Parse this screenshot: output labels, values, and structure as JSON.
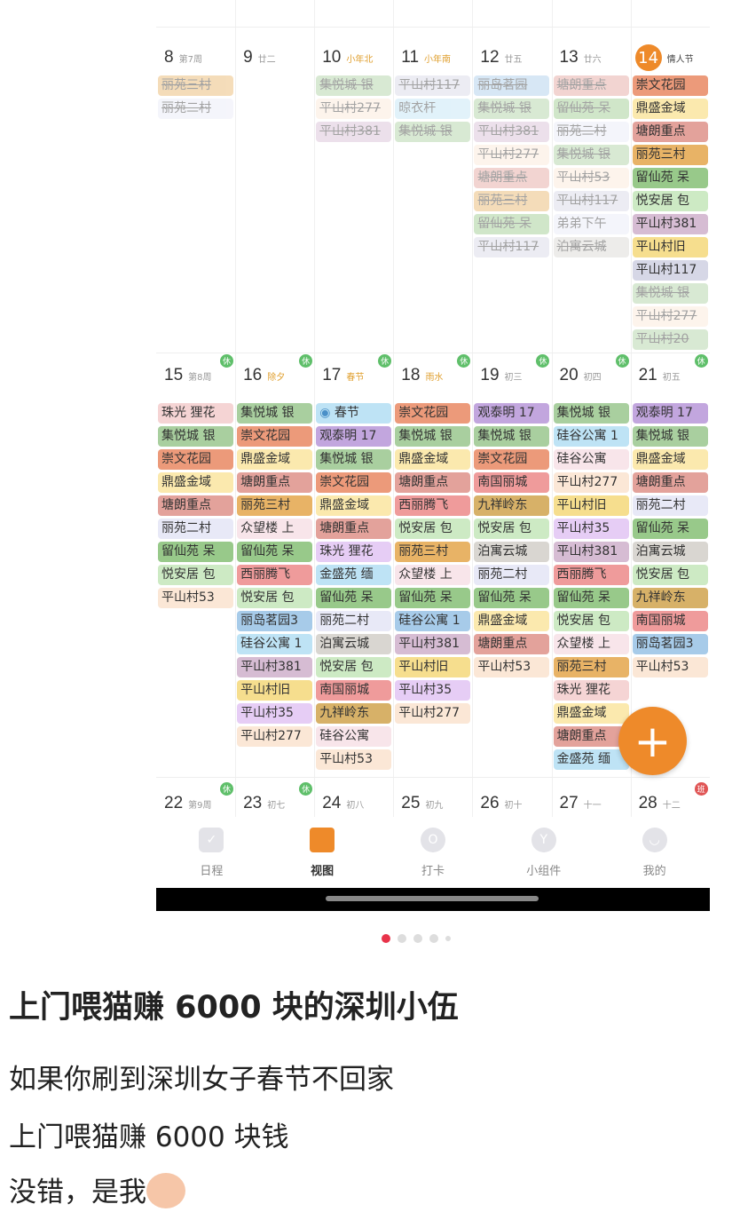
{
  "palette": {
    "orange": "#e8b366",
    "peach": "#f6dfb6",
    "coral": "#ec9a7a",
    "yellow": "#fbe9ae",
    "rose": "#e3a29b",
    "green": "#98c98a",
    "sage": "#a9cf9f",
    "lgreen": "#cdeac4",
    "mauve": "#d6bcd3",
    "gold": "#f6de8e",
    "slate": "#d6d7e6",
    "lav": "#e8e9f7",
    "purple": "#c2a6de",
    "pink": "#f5d4d4",
    "blue": "#a7cbe9",
    "sky": "#bee3f5",
    "red": "#ef9b9b",
    "brown": "#d7b168",
    "gray": "#d9d6d1",
    "lpink": "#f8e5ea",
    "cream": "#fbe7d6",
    "lilac": "#e6cdf5"
  },
  "accent": "#ee8a2a",
  "weeks": [
    {
      "days": [
        {
          "num": "8",
          "lunar": "第7周",
          "events": [
            {
              "t": "丽苑三村",
              "c": "orange",
              "s": "done"
            },
            {
              "t": "丽苑二村",
              "c": "lav",
              "s": "done"
            }
          ]
        },
        {
          "num": "9",
          "lunar": "廿二",
          "events": []
        },
        {
          "num": "10",
          "lunar": "小年北",
          "hol": true,
          "events": [
            {
              "t": "集悦城 银",
              "c": "sage",
              "s": "done"
            },
            {
              "t": "平山村277",
              "c": "cream",
              "s": "done"
            },
            {
              "t": "平山村381",
              "c": "mauve",
              "s": "done"
            }
          ]
        },
        {
          "num": "11",
          "lunar": "小年南",
          "hol": true,
          "events": [
            {
              "t": "平山村117",
              "c": "slate",
              "s": "done"
            },
            {
              "t": "晾衣杆",
              "c": "sky",
              "s": "faded"
            },
            {
              "t": "集悦城 银",
              "c": "sage",
              "s": "done"
            }
          ]
        },
        {
          "num": "12",
          "lunar": "廿五",
          "events": [
            {
              "t": "丽岛茗园",
              "c": "blue",
              "s": "done"
            },
            {
              "t": "集悦城 银",
              "c": "sage",
              "s": "done"
            },
            {
              "t": "平山村381",
              "c": "mauve",
              "s": "done"
            },
            {
              "t": "平山村277",
              "c": "cream",
              "s": "done"
            },
            {
              "t": "塘朗重点",
              "c": "rose",
              "s": "done"
            },
            {
              "t": "丽苑三村",
              "c": "orange",
              "s": "done"
            },
            {
              "t": "留仙苑 呆",
              "c": "green",
              "s": "done"
            },
            {
              "t": "平山村117",
              "c": "slate",
              "s": "done"
            }
          ]
        },
        {
          "num": "13",
          "lunar": "廿六",
          "events": [
            {
              "t": "塘朗重点",
              "c": "rose",
              "s": "done"
            },
            {
              "t": "留仙苑 呆",
              "c": "green",
              "s": "done"
            },
            {
              "t": "丽苑二村",
              "c": "lav",
              "s": "done"
            },
            {
              "t": "集悦城 银",
              "c": "sage",
              "s": "done"
            },
            {
              "t": "平山村53",
              "c": "cream",
              "s": "done"
            },
            {
              "t": "平山村117",
              "c": "slate",
              "s": "done"
            },
            {
              "t": "弟弟下午",
              "c": "lav",
              "s": "faded"
            },
            {
              "t": "泊寓云城",
              "c": "gray",
              "s": "done"
            }
          ]
        },
        {
          "num": "14",
          "lunar": "情人节",
          "today": true,
          "events": [
            {
              "t": "崇文花园",
              "c": "coral"
            },
            {
              "t": "鼎盛金域",
              "c": "yellow"
            },
            {
              "t": "塘朗重点",
              "c": "rose"
            },
            {
              "t": "丽苑三村",
              "c": "orange"
            },
            {
              "t": "留仙苑 呆",
              "c": "green"
            },
            {
              "t": "悦安居 包",
              "c": "lgreen"
            },
            {
              "t": "平山村381",
              "c": "mauve"
            },
            {
              "t": "平山村旧",
              "c": "gold"
            },
            {
              "t": "平山村117",
              "c": "slate"
            },
            {
              "t": "集悦城 银",
              "c": "sage",
              "s": "done"
            },
            {
              "t": "平山村277",
              "c": "cream",
              "s": "done"
            },
            {
              "t": "平山村20",
              "c": "sage",
              "s": "done"
            }
          ]
        }
      ]
    },
    {
      "days": [
        {
          "num": "15",
          "lunar": "第8周",
          "badge": "休",
          "events": [
            {
              "t": "珠光 狸花",
              "c": "pink"
            },
            {
              "t": "集悦城 银",
              "c": "sage"
            },
            {
              "t": "崇文花园",
              "c": "coral"
            },
            {
              "t": "鼎盛金域",
              "c": "yellow"
            },
            {
              "t": "塘朗重点",
              "c": "rose"
            },
            {
              "t": "丽苑二村",
              "c": "lav"
            },
            {
              "t": "留仙苑 呆",
              "c": "green"
            },
            {
              "t": "悦安居 包",
              "c": "lgreen"
            },
            {
              "t": "平山村53",
              "c": "cream"
            }
          ]
        },
        {
          "num": "16",
          "lunar": "除夕",
          "hol": true,
          "badge": "休",
          "events": [
            {
              "t": "集悦城 银",
              "c": "sage"
            },
            {
              "t": "崇文花园",
              "c": "coral"
            },
            {
              "t": "鼎盛金域",
              "c": "yellow"
            },
            {
              "t": "塘朗重点",
              "c": "rose"
            },
            {
              "t": "丽苑三村",
              "c": "orange"
            },
            {
              "t": "众望楼 上",
              "c": "lpink"
            },
            {
              "t": "留仙苑 呆",
              "c": "green"
            },
            {
              "t": "西丽腾飞",
              "c": "red"
            },
            {
              "t": "悦安居 包",
              "c": "lgreen"
            },
            {
              "t": "丽岛茗园3",
              "c": "blue"
            },
            {
              "t": "硅谷公寓 1",
              "c": "sky"
            },
            {
              "t": "平山村381",
              "c": "mauve"
            },
            {
              "t": "平山村旧",
              "c": "gold"
            },
            {
              "t": "平山村35",
              "c": "lilac"
            },
            {
              "t": "平山村277",
              "c": "cream"
            }
          ]
        },
        {
          "num": "17",
          "lunar": "春节",
          "hol": true,
          "badge": "休",
          "events": [
            {
              "t": "春节",
              "c": "sky",
              "icon": true
            },
            {
              "t": "观泰明 17",
              "c": "purple"
            },
            {
              "t": "集悦城 银",
              "c": "sage"
            },
            {
              "t": "崇文花园",
              "c": "coral"
            },
            {
              "t": "鼎盛金域",
              "c": "yellow"
            },
            {
              "t": "塘朗重点",
              "c": "rose"
            },
            {
              "t": "珠光 狸花",
              "c": "lilac"
            },
            {
              "t": "金盛苑 缅",
              "c": "sky"
            },
            {
              "t": "留仙苑 呆",
              "c": "green"
            },
            {
              "t": "丽苑二村",
              "c": "lav"
            },
            {
              "t": "泊寓云城",
              "c": "gray"
            },
            {
              "t": "悦安居 包",
              "c": "lgreen"
            },
            {
              "t": "南国丽城",
              "c": "red"
            },
            {
              "t": "九祥岭东",
              "c": "brown"
            },
            {
              "t": "硅谷公寓",
              "c": "lpink"
            },
            {
              "t": "平山村53",
              "c": "cream"
            }
          ]
        },
        {
          "num": "18",
          "lunar": "雨水",
          "hol": true,
          "badge": "休",
          "events": [
            {
              "t": "崇文花园",
              "c": "coral"
            },
            {
              "t": "集悦城 银",
              "c": "sage"
            },
            {
              "t": "鼎盛金域",
              "c": "yellow"
            },
            {
              "t": "塘朗重点",
              "c": "rose"
            },
            {
              "t": "西丽腾飞",
              "c": "red"
            },
            {
              "t": "悦安居 包",
              "c": "lgreen"
            },
            {
              "t": "丽苑三村",
              "c": "orange"
            },
            {
              "t": "众望楼 上",
              "c": "lpink"
            },
            {
              "t": "留仙苑 呆",
              "c": "green"
            },
            {
              "t": "硅谷公寓 1",
              "c": "blue"
            },
            {
              "t": "平山村381",
              "c": "mauve"
            },
            {
              "t": "平山村旧",
              "c": "gold"
            },
            {
              "t": "平山村35",
              "c": "lilac"
            },
            {
              "t": "平山村277",
              "c": "cream"
            }
          ]
        },
        {
          "num": "19",
          "lunar": "初三",
          "badge": "休",
          "events": [
            {
              "t": "观泰明 17",
              "c": "purple"
            },
            {
              "t": "集悦城 银",
              "c": "sage"
            },
            {
              "t": "崇文花园",
              "c": "coral"
            },
            {
              "t": "南国丽城",
              "c": "red"
            },
            {
              "t": "九祥岭东",
              "c": "brown"
            },
            {
              "t": "悦安居 包",
              "c": "lgreen"
            },
            {
              "t": "泊寓云城",
              "c": "gray"
            },
            {
              "t": "丽苑二村",
              "c": "lav"
            },
            {
              "t": "留仙苑 呆",
              "c": "green"
            },
            {
              "t": "鼎盛金域",
              "c": "yellow"
            },
            {
              "t": "塘朗重点",
              "c": "rose"
            },
            {
              "t": "平山村53",
              "c": "cream"
            }
          ]
        },
        {
          "num": "20",
          "lunar": "初四",
          "badge": "休",
          "events": [
            {
              "t": "集悦城 银",
              "c": "sage"
            },
            {
              "t": "硅谷公寓 1",
              "c": "sky"
            },
            {
              "t": "硅谷公寓",
              "c": "lpink"
            },
            {
              "t": "平山村277",
              "c": "cream"
            },
            {
              "t": "平山村旧",
              "c": "gold"
            },
            {
              "t": "平山村35",
              "c": "lilac"
            },
            {
              "t": "平山村381",
              "c": "mauve"
            },
            {
              "t": "西丽腾飞",
              "c": "red"
            },
            {
              "t": "留仙苑 呆",
              "c": "green"
            },
            {
              "t": "悦安居 包",
              "c": "lgreen"
            },
            {
              "t": "众望楼 上",
              "c": "lpink"
            },
            {
              "t": "丽苑三村",
              "c": "orange"
            },
            {
              "t": "珠光 狸花",
              "c": "pink"
            },
            {
              "t": "鼎盛金域",
              "c": "yellow"
            },
            {
              "t": "塘朗重点",
              "c": "rose"
            },
            {
              "t": "金盛苑 缅",
              "c": "sky"
            }
          ]
        },
        {
          "num": "21",
          "lunar": "初五",
          "badge": "休",
          "events": [
            {
              "t": "观泰明 17",
              "c": "purple"
            },
            {
              "t": "集悦城 银",
              "c": "sage"
            },
            {
              "t": "鼎盛金域",
              "c": "yellow"
            },
            {
              "t": "塘朗重点",
              "c": "rose"
            },
            {
              "t": "丽苑二村",
              "c": "lav"
            },
            {
              "t": "留仙苑 呆",
              "c": "green"
            },
            {
              "t": "泊寓云城",
              "c": "gray"
            },
            {
              "t": "悦安居 包",
              "c": "lgreen"
            },
            {
              "t": "九祥岭东",
              "c": "brown"
            },
            {
              "t": "南国丽城",
              "c": "red"
            },
            {
              "t": "丽岛茗园3",
              "c": "blue"
            },
            {
              "t": "平山村53",
              "c": "cream"
            }
          ]
        }
      ]
    },
    {
      "days": [
        {
          "num": "22",
          "lunar": "第9周",
          "badge": "休",
          "events": []
        },
        {
          "num": "23",
          "lunar": "初七",
          "badge": "休",
          "events": []
        },
        {
          "num": "24",
          "lunar": "初八",
          "events": []
        },
        {
          "num": "25",
          "lunar": "初九",
          "events": []
        },
        {
          "num": "26",
          "lunar": "初十",
          "events": []
        },
        {
          "num": "27",
          "lunar": "十一",
          "events": []
        },
        {
          "num": "28",
          "lunar": "十二",
          "badge": "班",
          "badgeRed": true,
          "events": []
        }
      ]
    }
  ],
  "fab_label": "+",
  "tabs": [
    {
      "label": "日程",
      "icon": "✓"
    },
    {
      "label": "视图",
      "icon": "",
      "active": true
    },
    {
      "label": "打卡",
      "icon": "O"
    },
    {
      "label": "小组件",
      "icon": "Y"
    },
    {
      "label": "我的",
      "icon": "◡"
    }
  ],
  "post": {
    "title": "上门喂猫赚 6000 块的深圳小伍",
    "lines": [
      "如果你刷到深圳女子春节不回家",
      "上门喂猫赚 6000 块钱",
      "没错，是我"
    ]
  }
}
